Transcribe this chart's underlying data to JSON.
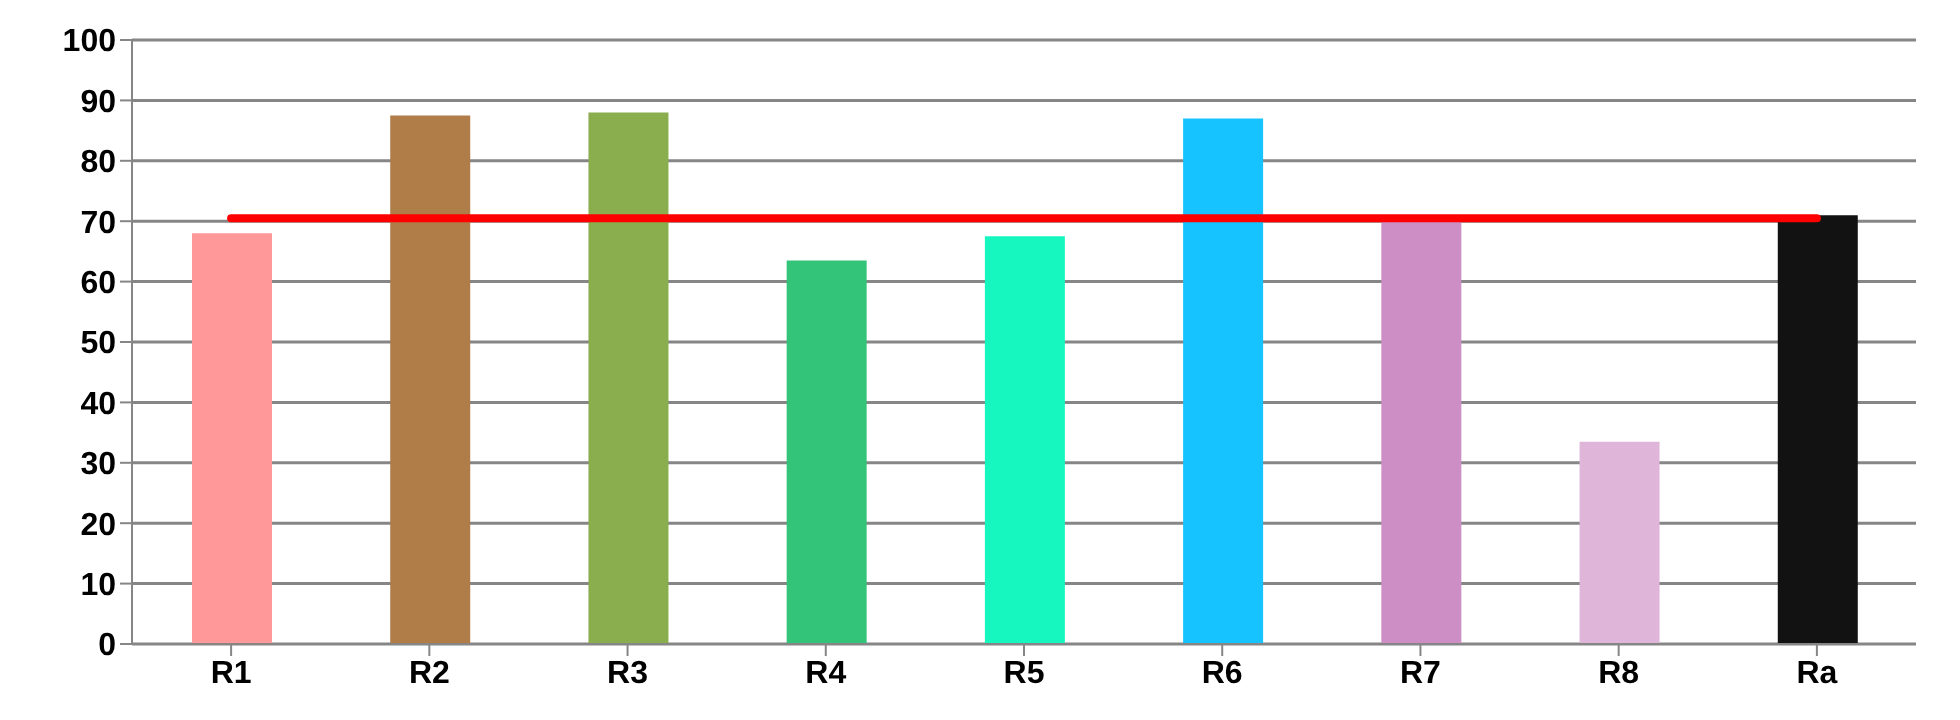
{
  "chart_data": {
    "type": "bar",
    "categories": [
      "R1",
      "R2",
      "R3",
      "R4",
      "R5",
      "R6",
      "R7",
      "R8",
      "Ra"
    ],
    "values": [
      68,
      87.5,
      88,
      63.5,
      67.5,
      87,
      70.5,
      33.5,
      71
    ],
    "colors": [
      "#ff9999",
      "#b07d48",
      "#8aad4e",
      "#33c47a",
      "#16f7c0",
      "#16c3ff",
      "#cc8ec4",
      "#dfb6da",
      "#121212"
    ],
    "ylim": [
      0,
      100
    ],
    "yticks": [
      0,
      10,
      20,
      30,
      40,
      50,
      60,
      70,
      80,
      90,
      100
    ],
    "grid": "y",
    "ref_lines": [
      {
        "axis": "y",
        "value": 70.5,
        "color": "#ff0000"
      }
    ]
  }
}
